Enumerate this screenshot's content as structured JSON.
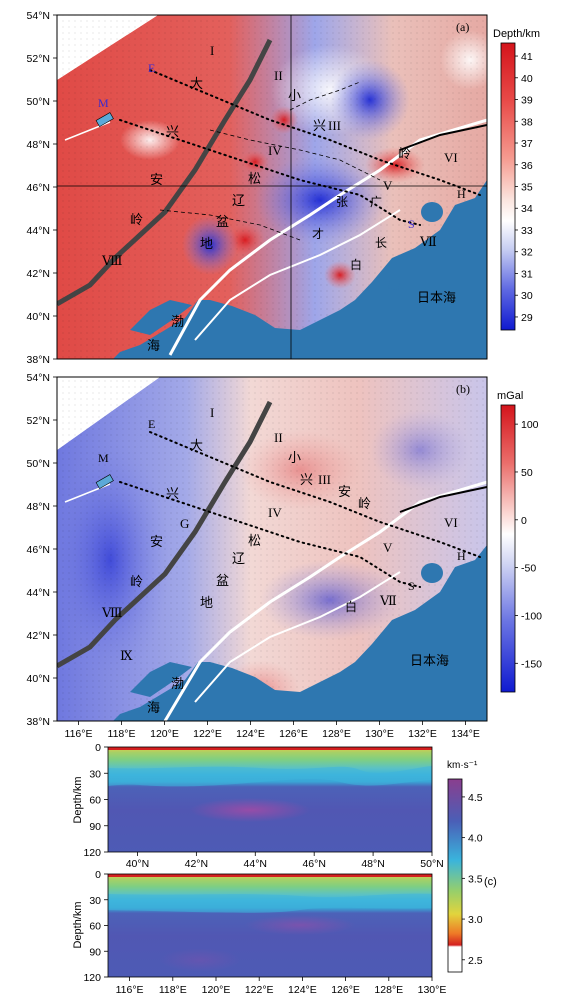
{
  "panels": {
    "a": {
      "tag": "(a)",
      "lat_ticks": [
        "54°N",
        "52°N",
        "50°N",
        "48°N",
        "46°N",
        "44°N",
        "42°N",
        "40°N",
        "38°N"
      ],
      "colorbar": {
        "title": "Depth/km",
        "ticks": [
          "41",
          "40",
          "39",
          "38",
          "37",
          "36",
          "35",
          "34",
          "33",
          "32",
          "31",
          "30",
          "29"
        ],
        "colors": [
          "#d4141b",
          "#e84a48",
          "#f59a8f",
          "#fbe6e0",
          "#ffffff",
          "#c6cdf2",
          "#5e68e2",
          "#0f1ad0"
        ]
      },
      "labels": {
        "I": "I",
        "II": "II",
        "III": "III",
        "IV": "IV",
        "V": "V",
        "VI": "VI",
        "VII": "Ⅶ",
        "VIII": "Ⅷ",
        "M": "M",
        "E": "E",
        "S": "S",
        "H": "H",
        "da": "大",
        "xing": "兴",
        "an": "安",
        "ling": "岭",
        "xiao": "小",
        "xing2": "兴",
        "ling2": "岭",
        "song": "松",
        "liao": "辽",
        "pen": "盆",
        "di": "地",
        "zhang": "张",
        "guang": "广",
        "cai": "才",
        "chang": "长",
        "bai": "白",
        "bo": "渤",
        "hai": "海",
        "sea": "日本海"
      }
    },
    "b": {
      "tag": "(b)",
      "lat_ticks": [
        "54°N",
        "52°N",
        "50°N",
        "48°N",
        "46°N",
        "44°N",
        "42°N",
        "40°N",
        "38°N"
      ],
      "lon_ticks": [
        "116°E",
        "118°E",
        "120°E",
        "122°E",
        "124°E",
        "126°E",
        "128°E",
        "130°E",
        "132°E",
        "134°E"
      ],
      "colorbar": {
        "title": "mGal",
        "ticks": [
          "100",
          "50",
          "0",
          "-50",
          "-100",
          "-150"
        ],
        "colors": [
          "#d4141b",
          "#ea6d6a",
          "#fbd8d4",
          "#ffffff",
          "#d2d6f3",
          "#6c76e3",
          "#0f1ad0"
        ]
      },
      "labels": {
        "I": "I",
        "II": "II",
        "III": "III",
        "IV": "IV",
        "V": "V",
        "VI": "VI",
        "VII": "Ⅶ",
        "VIII": "Ⅷ",
        "IX": "Ⅸ",
        "M": "M",
        "E": "E",
        "S": "S",
        "H": "H",
        "G": "G",
        "da": "大",
        "xing": "兴",
        "an": "安",
        "ling": "岭",
        "xiao": "小",
        "xing2": "兴",
        "an2": "安",
        "ling2": "岭",
        "song": "松",
        "liao": "辽",
        "pen": "盆",
        "di": "地",
        "bai": "白",
        "bo": "渤",
        "hai": "海",
        "sea": "日本海"
      }
    },
    "c": {
      "tag": "(c)",
      "unit": "km·s⁻¹",
      "ylabel": "Depth/km",
      "depth_ticks": [
        "0",
        "30",
        "60",
        "90",
        "120"
      ],
      "top_lat_ticks": [
        "40°N",
        "42°N",
        "44°N",
        "46°N",
        "48°N",
        "50°N"
      ],
      "bottom_lon_ticks": [
        "116°E",
        "118°E",
        "120°E",
        "122°E",
        "124°E",
        "126°E",
        "128°E",
        "130°E"
      ],
      "colorbar": {
        "ticks": [
          "4.5",
          "4.0",
          "3.5",
          "3.0",
          "2.5"
        ],
        "colors": [
          "#8a3e8e",
          "#4a5fb7",
          "#3ab4dc",
          "#96cf6b",
          "#e2d43d",
          "#ee7a27",
          "#d42020",
          "#ffffff"
        ]
      }
    }
  }
}
